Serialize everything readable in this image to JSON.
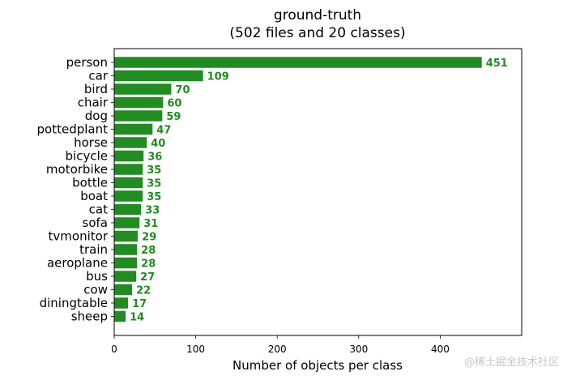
{
  "chart_data": {
    "type": "bar",
    "orientation": "horizontal",
    "title": "ground-truth",
    "subtitle": "(502 files and 20 classes)",
    "xlabel": "Number of objects per class",
    "ylabel": "",
    "xlim": [
      0,
      500
    ],
    "xticks": [
      "0",
      "100",
      "200",
      "300",
      "400"
    ],
    "grid": false,
    "legend": "none",
    "bar_color": "#228b22",
    "label_color": "#228b22",
    "categories": [
      "person",
      "car",
      "bird",
      "chair",
      "dog",
      "pottedplant",
      "horse",
      "bicycle",
      "motorbike",
      "bottle",
      "boat",
      "cat",
      "sofa",
      "tvmonitor",
      "train",
      "aeroplane",
      "bus",
      "cow",
      "diningtable",
      "sheep"
    ],
    "values": [
      451,
      109,
      70,
      60,
      59,
      47,
      40,
      36,
      35,
      35,
      35,
      33,
      31,
      29,
      28,
      28,
      27,
      22,
      17,
      14
    ],
    "value_labels": [
      "451",
      "109",
      "70",
      "60",
      "59",
      "47",
      "40",
      "36",
      "35",
      "35",
      "35",
      "33",
      "31",
      "29",
      "28",
      "28",
      "27",
      "22",
      "17",
      "14"
    ]
  },
  "watermark": {
    "text": "@稀土掘金技术社区"
  }
}
